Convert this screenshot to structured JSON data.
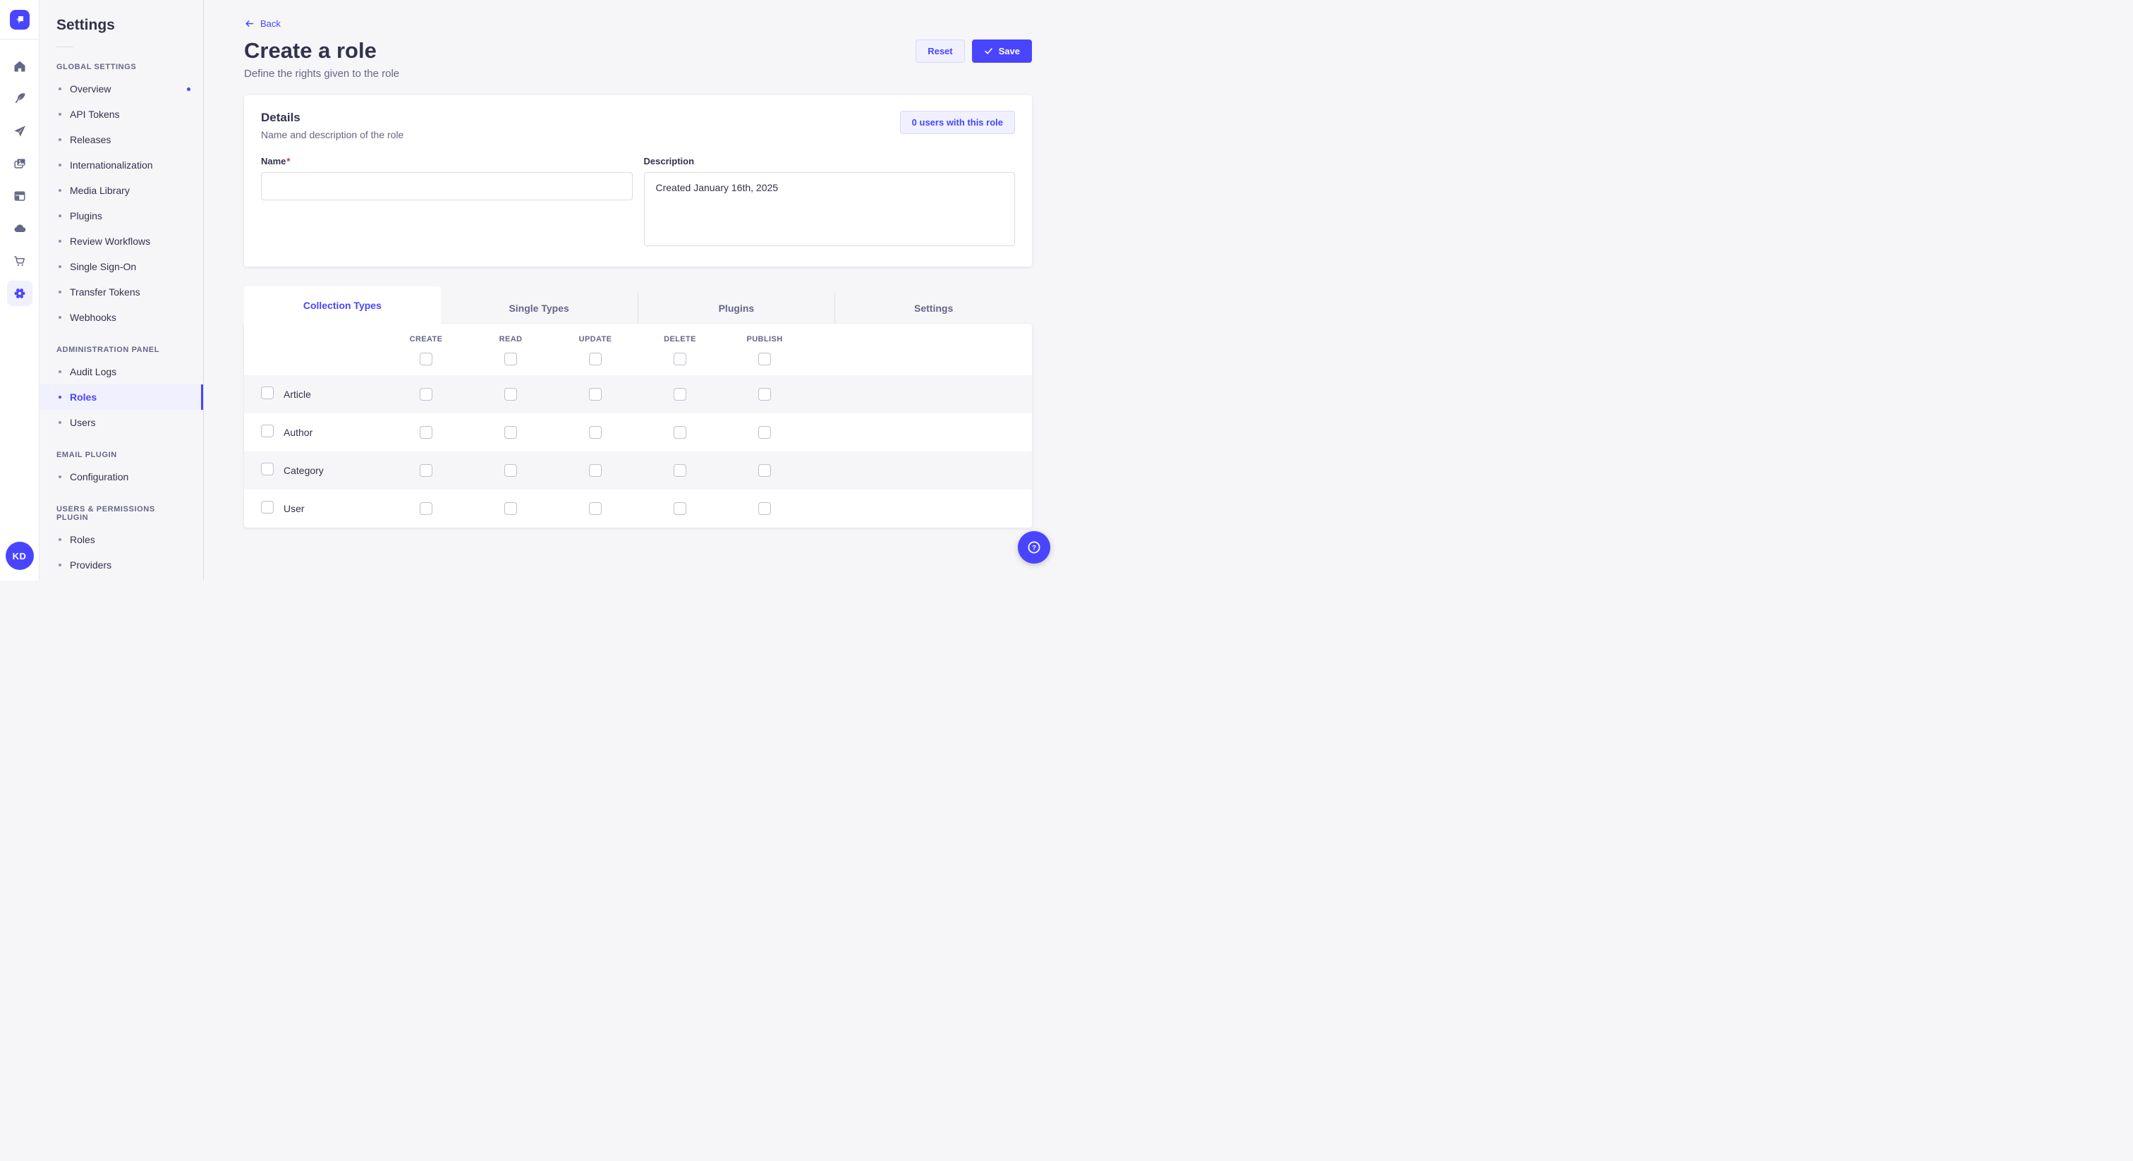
{
  "colors": {
    "primary": "#4945ff",
    "primary_light": "#f0f0ff",
    "primary_border": "#d9d8ff",
    "text": "#32324d",
    "muted": "#666687",
    "background": "#f6f6f9"
  },
  "rail": {
    "logo_icon": "strapi-logo",
    "icons": [
      "home-icon",
      "feather-icon",
      "paper-plane-icon",
      "media-library-icon",
      "layout-icon",
      "cloud-icon",
      "cart-icon",
      "settings-gear-icon"
    ],
    "active_icon": "settings-gear-icon",
    "avatar_initials": "KD"
  },
  "subnav": {
    "title": "Settings",
    "sections": [
      {
        "label": "GLOBAL SETTINGS",
        "items": [
          {
            "label": "Overview",
            "notification": true
          },
          {
            "label": "API Tokens"
          },
          {
            "label": "Releases"
          },
          {
            "label": "Internationalization"
          },
          {
            "label": "Media Library"
          },
          {
            "label": "Plugins"
          },
          {
            "label": "Review Workflows"
          },
          {
            "label": "Single Sign-On"
          },
          {
            "label": "Transfer Tokens"
          },
          {
            "label": "Webhooks"
          }
        ]
      },
      {
        "label": "ADMINISTRATION PANEL",
        "items": [
          {
            "label": "Audit Logs"
          },
          {
            "label": "Roles",
            "active": true
          },
          {
            "label": "Users"
          }
        ]
      },
      {
        "label": "EMAIL PLUGIN",
        "items": [
          {
            "label": "Configuration"
          }
        ]
      },
      {
        "label": "USERS & PERMISSIONS PLUGIN",
        "items": [
          {
            "label": "Roles"
          },
          {
            "label": "Providers"
          }
        ]
      }
    ]
  },
  "page": {
    "back_label": "Back",
    "title": "Create a role",
    "subtitle": "Define the rights given to the role",
    "reset_label": "Reset",
    "save_label": "Save"
  },
  "details": {
    "title": "Details",
    "subtitle": "Name and description of the role",
    "users_button_label": "0 users with this role",
    "name_label": "Name",
    "required_mark": "*",
    "name_value": "",
    "description_label": "Description",
    "description_value": "Created January 16th, 2025"
  },
  "permissions": {
    "tabs": [
      {
        "label": "Collection Types",
        "active": true
      },
      {
        "label": "Single Types"
      },
      {
        "label": "Plugins"
      },
      {
        "label": "Settings"
      }
    ],
    "columns": [
      "CREATE",
      "READ",
      "UPDATE",
      "DELETE",
      "PUBLISH"
    ],
    "rows": [
      "Article",
      "Author",
      "Category",
      "User"
    ]
  },
  "help_button": {
    "icon": "question-circle-icon"
  }
}
